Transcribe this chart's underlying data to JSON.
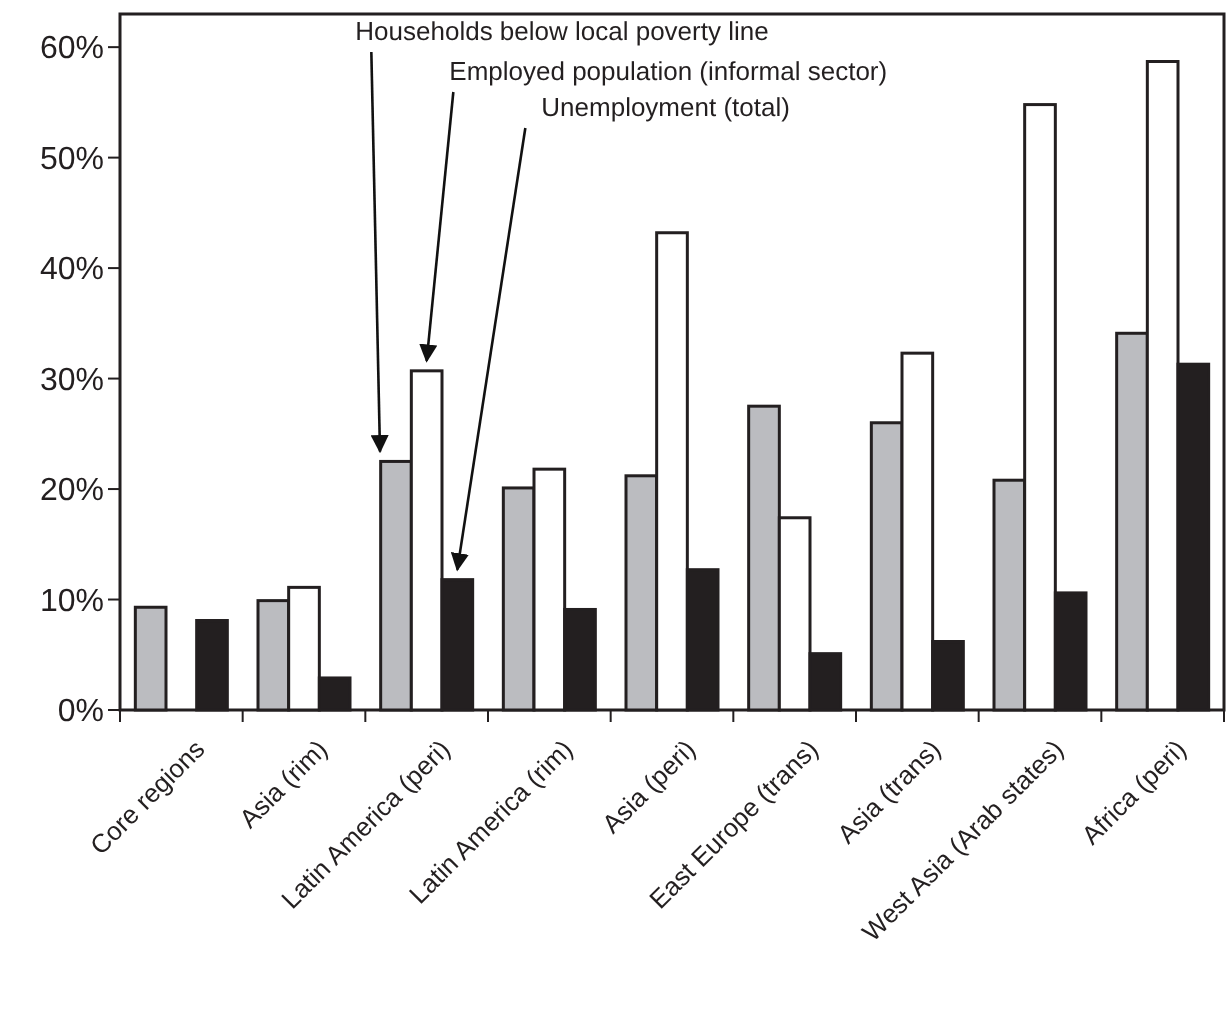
{
  "chart_data": {
    "type": "bar",
    "categories": [
      "Core regions",
      "Asia (rim)",
      "Latin America (peri)",
      "Latin America (rim)",
      "Asia (peri)",
      "East Europe (trans)",
      "Asia (trans)",
      "West Asia (Arab states)",
      "Africa (peri)"
    ],
    "series": [
      {
        "name": "Households below local poverty line",
        "color": "#bbbcc0",
        "values": [
          9.3,
          9.9,
          22.5,
          20.1,
          21.2,
          27.5,
          26.0,
          20.8,
          34.1
        ]
      },
      {
        "name": "Employed population (informal sector)",
        "color": "#ffffff",
        "values": [
          null,
          11.1,
          30.7,
          21.8,
          43.2,
          17.4,
          32.3,
          54.8,
          58.7
        ]
      },
      {
        "name": "Unemployment (total)",
        "color": "#231f20",
        "values": [
          8.1,
          2.9,
          11.8,
          9.1,
          12.7,
          5.1,
          6.2,
          10.6,
          31.3
        ]
      }
    ],
    "ylim": [
      0,
      63
    ],
    "yticks": [
      {
        "value": 0,
        "label": "0%"
      },
      {
        "value": 10,
        "label": "10%"
      },
      {
        "value": 20,
        "label": "20%"
      },
      {
        "value": 30,
        "label": "30%"
      },
      {
        "value": 40,
        "label": "40%"
      },
      {
        "value": 50,
        "label": "50%"
      },
      {
        "value": 60,
        "label": "60%"
      }
    ],
    "grid": false,
    "legend": false
  }
}
